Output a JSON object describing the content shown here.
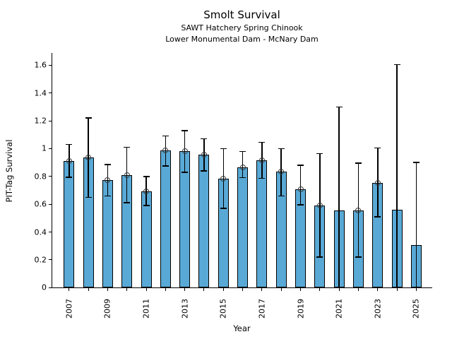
{
  "figure": {
    "title": "Smolt Survival",
    "subtitle1": "SAWT Hatchery Spring Chinook",
    "subtitle2": "Lower Monumental Dam - McNary Dam",
    "xlabel": "Year",
    "ylabel": "PIT-Tag Survival",
    "bar_color": "#59a9d6",
    "bar_edge_color": "#000000",
    "errorbar_color": "#000000",
    "marker_edge_color": "#3a3a3a"
  },
  "chart_data": {
    "type": "bar",
    "title": "Smolt Survival",
    "subtitle": [
      "SAWT Hatchery Spring Chinook",
      "Lower Monumental Dam - McNary Dam"
    ],
    "xlabel": "Year",
    "ylabel": "PIT-Tag Survival",
    "ylim": [
      0,
      1.68
    ],
    "yticks": [
      0,
      0.2,
      0.4,
      0.6,
      0.8,
      1.0,
      1.2,
      1.4,
      1.6
    ],
    "ytick_labels": [
      "0",
      "0.2",
      "0.4",
      "0.6",
      "0.8",
      "1",
      "1.2",
      "1.4",
      "1.6"
    ],
    "grid": false,
    "legend": "none",
    "categories": [
      2007,
      2008,
      2009,
      2010,
      2011,
      2012,
      2013,
      2014,
      2015,
      2016,
      2017,
      2018,
      2019,
      2020,
      2021,
      2022,
      2023,
      2024,
      2025
    ],
    "labeled_year_ticks": [
      2007,
      2009,
      2011,
      2013,
      2015,
      2017,
      2019,
      2021,
      2023,
      2025
    ],
    "values": [
      0.91,
      0.935,
      0.775,
      0.81,
      0.69,
      0.985,
      0.98,
      0.955,
      0.785,
      0.865,
      0.915,
      0.835,
      0.71,
      0.59,
      0.555,
      0.555,
      0.755,
      0.56,
      0.305
    ],
    "error_low": [
      0.795,
      0.65,
      0.66,
      0.61,
      0.59,
      0.875,
      0.83,
      0.84,
      0.57,
      0.79,
      0.785,
      0.66,
      0.595,
      0.22,
      0.0,
      0.22,
      0.51,
      0.0,
      0.0
    ],
    "error_high": [
      1.03,
      1.22,
      0.885,
      1.01,
      0.8,
      1.09,
      1.13,
      1.07,
      1.0,
      0.98,
      1.045,
      1.0,
      0.88,
      0.965,
      1.3,
      0.895,
      1.005,
      1.605,
      0.9
    ],
    "point_marker_shown": [
      true,
      true,
      true,
      true,
      true,
      true,
      true,
      true,
      true,
      true,
      true,
      true,
      true,
      true,
      false,
      true,
      true,
      false,
      false
    ]
  }
}
